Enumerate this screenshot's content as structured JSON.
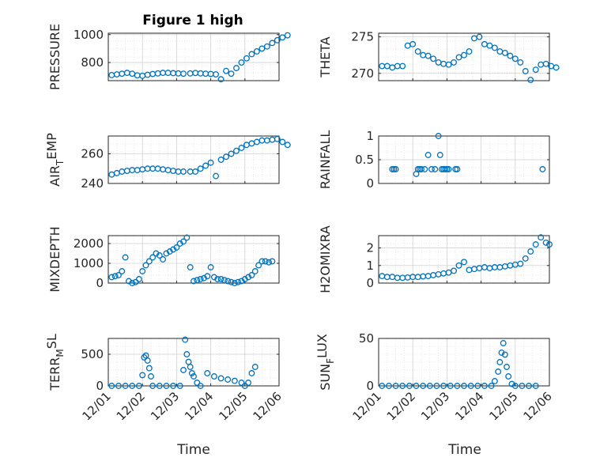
{
  "figure": {
    "title": "Figure 1 high",
    "marker_color": "#0072BD",
    "xlabel": "Time",
    "x_ticks": [
      "12/01",
      "12/02",
      "12/03",
      "12/04",
      "12/05",
      "12/06"
    ]
  },
  "chart_data": [
    {
      "type": "scatter",
      "ylabel": "PRESSURE",
      "ylim": [
        670,
        1010
      ],
      "yticks": [
        800,
        1000
      ],
      "xlim": [
        0,
        5
      ],
      "grid": true,
      "x": [
        0.1,
        0.25,
        0.4,
        0.55,
        0.7,
        0.85,
        1.0,
        1.15,
        1.3,
        1.45,
        1.6,
        1.75,
        1.9,
        2.05,
        2.2,
        2.4,
        2.55,
        2.7,
        2.85,
        3.0,
        3.15,
        3.3,
        3.45,
        3.6,
        3.75,
        3.9,
        4.05,
        4.2,
        4.35,
        4.5,
        4.65,
        4.8,
        4.95,
        5.1,
        5.25
      ],
      "y": [
        710,
        715,
        720,
        726,
        720,
        708,
        705,
        712,
        718,
        722,
        726,
        726,
        724,
        722,
        720,
        722,
        725,
        722,
        720,
        718,
        715,
        680,
        740,
        720,
        760,
        800,
        830,
        860,
        880,
        900,
        915,
        940,
        960,
        980,
        995
      ]
    },
    {
      "type": "scatter",
      "ylabel": "THETA",
      "ylim": [
        269,
        275.5
      ],
      "yticks": [
        270,
        275
      ],
      "xlim": [
        0,
        5
      ],
      "grid": true,
      "x": [
        0.1,
        0.25,
        0.4,
        0.55,
        0.7,
        0.85,
        1.0,
        1.15,
        1.3,
        1.45,
        1.6,
        1.75,
        1.9,
        2.05,
        2.2,
        2.35,
        2.5,
        2.65,
        2.8,
        2.95,
        3.1,
        3.25,
        3.4,
        3.55,
        3.7,
        3.85,
        4.0,
        4.15,
        4.3,
        4.45,
        4.6,
        4.75,
        4.9,
        5.05,
        5.2
      ],
      "y": [
        271,
        271,
        270.8,
        271,
        271,
        273.8,
        274,
        273,
        272.5,
        272.4,
        272,
        271.5,
        271.3,
        271.2,
        271.5,
        272.2,
        272.5,
        273,
        274.8,
        275,
        274,
        273.8,
        273.5,
        273,
        272.8,
        272.4,
        272,
        271.5,
        270.3,
        269.1,
        270.5,
        271.2,
        271.3,
        271,
        270.8
      ]
    },
    {
      "type": "scatter",
      "ylabel": "AIR_TEMP",
      "ylim": [
        240,
        272
      ],
      "yticks": [
        240,
        260
      ],
      "xlim": [
        0,
        5
      ],
      "grid": true,
      "x": [
        0.1,
        0.25,
        0.4,
        0.55,
        0.7,
        0.85,
        1.0,
        1.15,
        1.3,
        1.45,
        1.6,
        1.75,
        1.9,
        2.05,
        2.2,
        2.4,
        2.55,
        2.7,
        2.85,
        3.0,
        3.15,
        3.3,
        3.45,
        3.6,
        3.75,
        3.9,
        4.05,
        4.2,
        4.35,
        4.5,
        4.65,
        4.8,
        4.95,
        5.1,
        5.25
      ],
      "y": [
        246,
        247,
        248,
        248.5,
        249,
        249,
        249.5,
        250,
        250,
        250,
        249.5,
        249,
        248.5,
        248,
        248,
        248,
        248,
        250,
        252,
        254,
        245,
        256,
        258,
        260,
        262,
        264,
        266,
        267,
        268,
        269,
        269,
        269.5,
        270,
        268,
        266
      ]
    },
    {
      "type": "scatter",
      "ylabel": "RAINFALL",
      "ylim": [
        0,
        1
      ],
      "yticks": [
        0,
        0.5,
        1
      ],
      "xlim": [
        0,
        5
      ],
      "grid": true,
      "x": [
        0.4,
        0.45,
        0.5,
        1.1,
        1.15,
        1.2,
        1.25,
        1.35,
        1.45,
        1.55,
        1.65,
        1.75,
        1.8,
        1.85,
        1.9,
        1.95,
        2.0,
        2.05,
        2.25,
        2.3,
        4.8
      ],
      "y": [
        0.3,
        0.3,
        0.3,
        0.2,
        0.3,
        0.3,
        0.3,
        0.3,
        0.6,
        0.3,
        0.3,
        1.0,
        0.6,
        0.3,
        0.3,
        0.3,
        0.3,
        0.3,
        0.3,
        0.3,
        0.3
      ]
    },
    {
      "type": "scatter",
      "ylabel": "MIXDEPTH",
      "ylim": [
        0,
        2400
      ],
      "yticks": [
        0,
        1000,
        2000
      ],
      "xlim": [
        0,
        5
      ],
      "grid": true,
      "x": [
        0.1,
        0.2,
        0.3,
        0.4,
        0.5,
        0.6,
        0.7,
        0.8,
        0.9,
        1.0,
        1.1,
        1.2,
        1.3,
        1.4,
        1.5,
        1.6,
        1.7,
        1.8,
        1.9,
        2.0,
        2.1,
        2.2,
        2.3,
        2.4,
        2.5,
        2.6,
        2.7,
        2.8,
        2.9,
        3.0,
        3.1,
        3.2,
        3.3,
        3.4,
        3.5,
        3.6,
        3.7,
        3.8,
        3.9,
        4.0,
        4.1,
        4.2,
        4.3,
        4.4,
        4.5,
        4.6,
        4.7,
        4.8
      ],
      "y": [
        300,
        350,
        400,
        600,
        1300,
        100,
        0,
        50,
        200,
        600,
        900,
        1100,
        1300,
        1500,
        1400,
        1200,
        1500,
        1600,
        1700,
        1800,
        2000,
        2100,
        2300,
        800,
        100,
        150,
        200,
        250,
        350,
        800,
        300,
        200,
        200,
        150,
        100,
        50,
        0,
        50,
        100,
        200,
        300,
        400,
        600,
        900,
        1100,
        1100,
        1050,
        1100
      ]
    },
    {
      "type": "scatter",
      "ylabel": "H2OMIXRA",
      "ylim": [
        0,
        2.7
      ],
      "yticks": [
        0,
        1,
        2
      ],
      "xlim": [
        0,
        5
      ],
      "grid": true,
      "x": [
        0.1,
        0.25,
        0.4,
        0.55,
        0.7,
        0.85,
        1.0,
        1.15,
        1.3,
        1.45,
        1.6,
        1.75,
        1.9,
        2.05,
        2.2,
        2.35,
        2.5,
        2.65,
        2.8,
        2.95,
        3.1,
        3.25,
        3.4,
        3.55,
        3.7,
        3.85,
        4.0,
        4.15,
        4.3,
        4.45,
        4.6,
        4.75,
        4.9,
        5.0
      ],
      "y": [
        0.4,
        0.35,
        0.35,
        0.3,
        0.3,
        0.32,
        0.35,
        0.35,
        0.38,
        0.4,
        0.45,
        0.5,
        0.55,
        0.6,
        0.7,
        1.0,
        1.2,
        0.75,
        0.8,
        0.85,
        0.9,
        0.85,
        0.9,
        0.9,
        0.95,
        1.0,
        1.05,
        1.1,
        1.4,
        1.8,
        2.2,
        2.6,
        2.3,
        2.2
      ]
    },
    {
      "type": "scatter",
      "ylabel": "TERR_MSL",
      "ylim": [
        0,
        750
      ],
      "yticks": [
        0,
        500
      ],
      "xlim": [
        0,
        5
      ],
      "grid": true,
      "x": [
        0.1,
        0.3,
        0.5,
        0.7,
        0.9,
        1.0,
        1.05,
        1.1,
        1.15,
        1.2,
        1.25,
        1.3,
        1.5,
        1.7,
        1.9,
        2.1,
        2.2,
        2.25,
        2.3,
        2.35,
        2.4,
        2.45,
        2.5,
        2.6,
        2.7,
        2.9,
        3.1,
        3.3,
        3.5,
        3.7,
        3.9,
        4.0,
        4.1,
        4.2,
        4.3
      ],
      "y": [
        0,
        0,
        0,
        0,
        0,
        170,
        450,
        480,
        400,
        280,
        150,
        0,
        0,
        0,
        0,
        0,
        250,
        730,
        500,
        380,
        300,
        200,
        150,
        50,
        0,
        200,
        150,
        120,
        100,
        80,
        50,
        0,
        50,
        200,
        300
      ]
    },
    {
      "type": "scatter",
      "ylabel": "SUN_FLUX",
      "ylim": [
        0,
        50
      ],
      "yticks": [
        0,
        50
      ],
      "xlim": [
        0,
        5
      ],
      "grid": true,
      "x": [
        0.1,
        0.3,
        0.5,
        0.7,
        0.9,
        1.1,
        1.3,
        1.5,
        1.7,
        1.9,
        2.1,
        2.3,
        2.5,
        2.7,
        2.9,
        3.1,
        3.3,
        3.4,
        3.5,
        3.55,
        3.6,
        3.65,
        3.7,
        3.75,
        3.8,
        3.9,
        4.0,
        4.2,
        4.4,
        4.6
      ],
      "y": [
        0,
        0,
        0,
        0,
        0,
        0,
        0,
        0,
        0,
        0,
        0,
        0,
        0,
        0,
        0,
        0,
        0,
        5,
        15,
        25,
        35,
        45,
        33,
        20,
        10,
        2,
        0,
        0,
        0,
        0
      ]
    }
  ],
  "ylabel_display": [
    {
      "base": "PRESSURE",
      "sub": "",
      "after": ""
    },
    {
      "base": "THETA",
      "sub": "",
      "after": ""
    },
    {
      "base": "AIR",
      "sub": "T",
      "after": "EMP"
    },
    {
      "base": "RAINFALL",
      "sub": "",
      "after": ""
    },
    {
      "base": "MIXDEPTH",
      "sub": "",
      "after": ""
    },
    {
      "base": "H2OMIXRA",
      "sub": "",
      "after": ""
    },
    {
      "base": "TERR",
      "sub": "M",
      "after": "SL"
    },
    {
      "base": "SUN",
      "sub": "F",
      "after": "LUX"
    }
  ]
}
